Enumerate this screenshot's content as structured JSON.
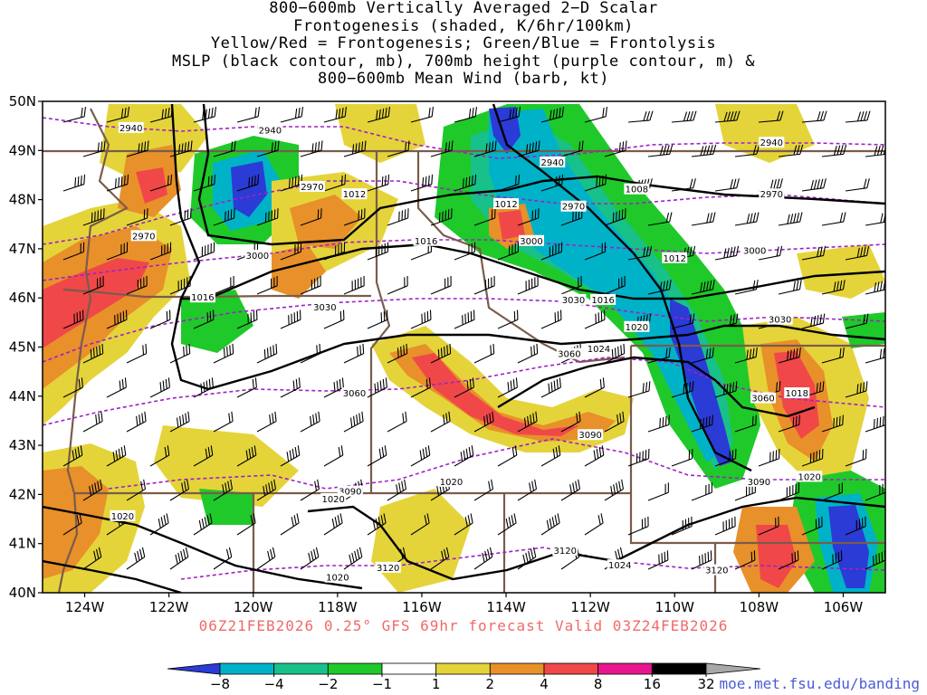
{
  "title_lines": [
    "800−600mb Vertically Averaged 2−D Scalar",
    "Frontogenesis (shaded, K/6hr/100km)",
    "Yellow/Red = Frontogenesis;  Green/Blue = Frontolysis",
    "MSLP (black contour, mb), 700mb height (purple contour, m) &",
    "800−600mb Mean Wind (barb, kt)"
  ],
  "footer": "06Z21FEB2026 0.25° GFS 69hr forecast Valid 03Z24FEB2026",
  "credit": "moe.met.fsu.edu/banding",
  "map": {
    "lon_range": [
      -125.0,
      -105.0
    ],
    "lat_range": [
      40.0,
      50.0
    ],
    "x_tick_labels": [
      "124W",
      "122W",
      "120W",
      "118W",
      "116W",
      "114W",
      "112W",
      "110W",
      "108W",
      "106W"
    ],
    "x_tick_values": [
      -124,
      -122,
      -120,
      -118,
      -116,
      -114,
      -112,
      -110,
      -108,
      -106
    ],
    "y_tick_labels": [
      "40N",
      "41N",
      "42N",
      "43N",
      "44N",
      "45N",
      "46N",
      "47N",
      "48N",
      "49N",
      "50N"
    ],
    "y_tick_values": [
      40,
      41,
      42,
      43,
      44,
      45,
      46,
      47,
      48,
      49,
      50
    ],
    "height_labels_m": [
      {
        "text": "2940",
        "lon": -122.9,
        "lat": 49.45
      },
      {
        "text": "2940",
        "lon": -119.6,
        "lat": 49.4
      },
      {
        "text": "2940",
        "lon": -112.9,
        "lat": 48.75
      },
      {
        "text": "2940",
        "lon": -107.7,
        "lat": 49.15
      },
      {
        "text": "2970",
        "lon": -118.6,
        "lat": 48.25
      },
      {
        "text": "2970",
        "lon": -112.4,
        "lat": 47.85
      },
      {
        "text": "2970",
        "lon": -107.7,
        "lat": 48.1
      },
      {
        "text": "2970",
        "lon": -122.6,
        "lat": 47.25
      },
      {
        "text": "3000",
        "lon": -119.9,
        "lat": 46.85
      },
      {
        "text": "3000",
        "lon": -113.4,
        "lat": 47.15
      },
      {
        "text": "3000",
        "lon": -108.1,
        "lat": 46.95
      },
      {
        "text": "3030",
        "lon": -118.3,
        "lat": 45.8
      },
      {
        "text": "3030",
        "lon": -112.4,
        "lat": 45.95
      },
      {
        "text": "3030",
        "lon": -107.5,
        "lat": 45.55
      },
      {
        "text": "3060",
        "lon": -117.6,
        "lat": 44.05
      },
      {
        "text": "3060",
        "lon": -112.5,
        "lat": 44.85
      },
      {
        "text": "3060",
        "lon": -107.9,
        "lat": 43.95
      },
      {
        "text": "3090",
        "lon": -112.0,
        "lat": 43.2
      },
      {
        "text": "3090",
        "lon": -117.7,
        "lat": 42.05
      },
      {
        "text": "3090",
        "lon": -108.0,
        "lat": 42.25
      },
      {
        "text": "3120",
        "lon": -112.6,
        "lat": 40.85
      },
      {
        "text": "3120",
        "lon": -116.8,
        "lat": 40.5
      },
      {
        "text": "3120",
        "lon": -109.0,
        "lat": 40.45
      }
    ],
    "pressure_labels_mb": [
      {
        "text": "1012",
        "lon": -117.6,
        "lat": 48.1
      },
      {
        "text": "1012",
        "lon": -114.0,
        "lat": 47.9
      },
      {
        "text": "1008",
        "lon": -110.9,
        "lat": 48.2
      },
      {
        "text": "1016",
        "lon": -115.9,
        "lat": 47.15
      },
      {
        "text": "1012",
        "lon": -110.0,
        "lat": 46.8
      },
      {
        "text": "1016",
        "lon": -121.2,
        "lat": 46.0
      },
      {
        "text": "1016",
        "lon": -111.7,
        "lat": 45.95
      },
      {
        "text": "1020",
        "lon": -110.9,
        "lat": 45.4
      },
      {
        "text": "1024",
        "lon": -111.8,
        "lat": 44.95
      },
      {
        "text": "1018",
        "lon": -107.1,
        "lat": 44.05
      },
      {
        "text": "1020",
        "lon": -106.8,
        "lat": 42.35
      },
      {
        "text": "1020",
        "lon": -115.3,
        "lat": 42.25
      },
      {
        "text": "1020",
        "lon": -118.1,
        "lat": 41.9
      },
      {
        "text": "1020",
        "lon": -123.1,
        "lat": 41.55
      },
      {
        "text": "1024",
        "lon": -111.3,
        "lat": 40.55
      },
      {
        "text": "1020",
        "lon": -118.0,
        "lat": 40.3
      }
    ]
  },
  "colorbar": {
    "labels": [
      "−8",
      "−4",
      "−2",
      "−1",
      "1",
      "2",
      "4",
      "8",
      "16",
      "32"
    ],
    "colors": [
      "#2a3bd6",
      "#00b2c8",
      "#18c08a",
      "#1fc92a",
      "#ffffff",
      "#e4d43a",
      "#e8902a",
      "#f04848",
      "#e8168e",
      "#000000",
      "#a8a8a8"
    ]
  }
}
